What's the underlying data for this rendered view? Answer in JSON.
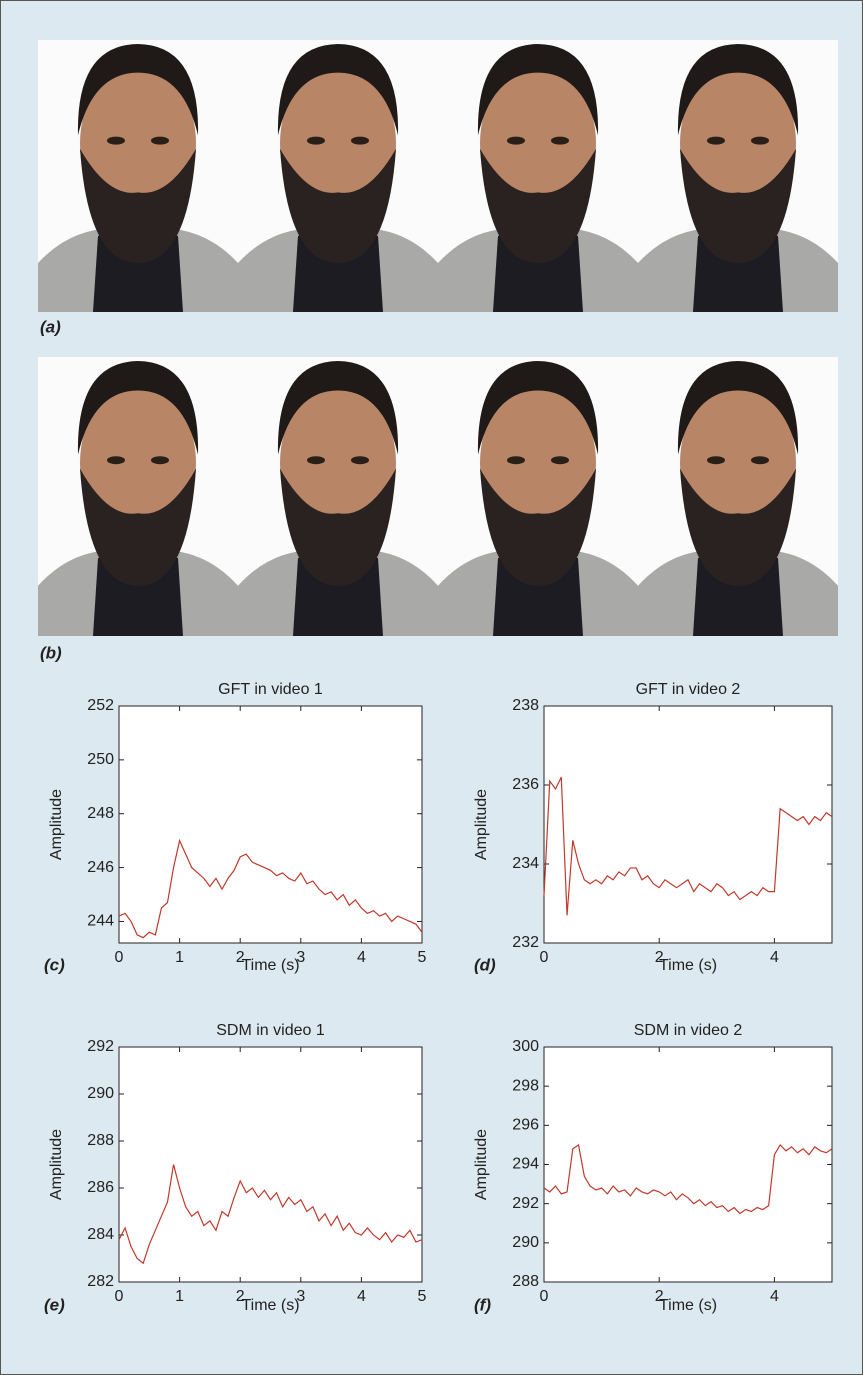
{
  "panel_labels": [
    "(a)",
    "(b)",
    "(c)",
    "(d)",
    "(e)",
    "(f)"
  ],
  "chart_data": [
    {
      "type": "line",
      "title": "GFT in video 1",
      "x_label": "Time (s)",
      "y_label": "Amplitude",
      "color": "#c0392b",
      "x": [
        0,
        0.1,
        0.2,
        0.3,
        0.4,
        0.5,
        0.6,
        0.7,
        0.8,
        0.9,
        1,
        1.1,
        1.2,
        1.3,
        1.4,
        1.5,
        1.6,
        1.7,
        1.8,
        1.9,
        2,
        2.1,
        2.2,
        2.3,
        2.4,
        2.5,
        2.6,
        2.7,
        2.8,
        2.9,
        3,
        3.1,
        3.2,
        3.3,
        3.4,
        3.5,
        3.6,
        3.7,
        3.8,
        3.9,
        4,
        4.1,
        4.2,
        4.3,
        4.4,
        4.5,
        4.6,
        4.7,
        4.8,
        4.9,
        5
      ],
      "values": [
        244.2,
        244.3,
        244.0,
        243.5,
        243.4,
        243.6,
        243.5,
        244.5,
        244.7,
        246.0,
        247.0,
        246.5,
        246.0,
        245.8,
        245.6,
        245.3,
        245.6,
        245.2,
        245.6,
        245.9,
        246.4,
        246.5,
        246.2,
        246.1,
        246.0,
        245.9,
        245.7,
        245.8,
        245.6,
        245.5,
        245.8,
        245.4,
        245.5,
        245.2,
        245.0,
        245.1,
        244.8,
        245.0,
        244.6,
        244.8,
        244.5,
        244.3,
        244.4,
        244.2,
        244.3,
        244.0,
        244.2,
        244.1,
        244.0,
        243.9,
        243.6
      ],
      "xlim": [
        0,
        5
      ],
      "ylim": [
        243.2,
        252
      ],
      "xticks": [
        0,
        1,
        2,
        3,
        4,
        5
      ],
      "yticks": [
        244,
        246,
        248,
        250,
        252
      ]
    },
    {
      "type": "line",
      "title": "GFT in video 2",
      "x_label": "Time (s)",
      "y_label": "Amplitude",
      "color": "#c0392b",
      "x": [
        0,
        0.1,
        0.2,
        0.3,
        0.4,
        0.5,
        0.6,
        0.7,
        0.8,
        0.9,
        1,
        1.1,
        1.2,
        1.3,
        1.4,
        1.5,
        1.6,
        1.7,
        1.8,
        1.9,
        2,
        2.1,
        2.2,
        2.3,
        2.4,
        2.5,
        2.6,
        2.7,
        2.8,
        2.9,
        3,
        3.1,
        3.2,
        3.3,
        3.4,
        3.5,
        3.6,
        3.7,
        3.8,
        3.9,
        4,
        4.1,
        4.2,
        4.3,
        4.4,
        4.5,
        4.6,
        4.7,
        4.8,
        4.9,
        5
      ],
      "values": [
        233.2,
        236.1,
        235.9,
        236.2,
        232.7,
        234.6,
        234.0,
        233.6,
        233.5,
        233.6,
        233.5,
        233.7,
        233.6,
        233.8,
        233.7,
        233.9,
        233.9,
        233.6,
        233.7,
        233.5,
        233.4,
        233.6,
        233.5,
        233.4,
        233.5,
        233.6,
        233.3,
        233.5,
        233.4,
        233.3,
        233.5,
        233.4,
        233.2,
        233.3,
        233.1,
        233.2,
        233.3,
        233.2,
        233.4,
        233.3,
        233.3,
        235.4,
        235.3,
        235.2,
        235.1,
        235.2,
        235.0,
        235.2,
        235.1,
        235.3,
        235.2
      ],
      "xlim": [
        0,
        5
      ],
      "ylim": [
        232,
        238
      ],
      "xticks": [
        0,
        2,
        4
      ],
      "yticks": [
        232,
        234,
        236,
        238
      ]
    },
    {
      "type": "line",
      "title": "SDM in video 1",
      "x_label": "Time (s)",
      "y_label": "Amplitude",
      "color": "#c0392b",
      "x": [
        0,
        0.1,
        0.2,
        0.3,
        0.4,
        0.5,
        0.6,
        0.7,
        0.8,
        0.9,
        1,
        1.1,
        1.2,
        1.3,
        1.4,
        1.5,
        1.6,
        1.7,
        1.8,
        1.9,
        2,
        2.1,
        2.2,
        2.3,
        2.4,
        2.5,
        2.6,
        2.7,
        2.8,
        2.9,
        3,
        3.1,
        3.2,
        3.3,
        3.4,
        3.5,
        3.6,
        3.7,
        3.8,
        3.9,
        4,
        4.1,
        4.2,
        4.3,
        4.4,
        4.5,
        4.6,
        4.7,
        4.8,
        4.9,
        5
      ],
      "values": [
        283.8,
        284.3,
        283.5,
        283.0,
        282.8,
        283.6,
        284.2,
        284.8,
        285.4,
        287.0,
        286.0,
        285.2,
        284.8,
        285.0,
        284.4,
        284.6,
        284.2,
        285.0,
        284.8,
        285.6,
        286.3,
        285.8,
        286.0,
        285.6,
        285.9,
        285.5,
        285.8,
        285.2,
        285.6,
        285.3,
        285.5,
        285.0,
        285.2,
        284.6,
        284.9,
        284.4,
        284.8,
        284.2,
        284.5,
        284.1,
        284.0,
        284.3,
        284.0,
        283.8,
        284.1,
        283.7,
        284.0,
        283.9,
        284.2,
        283.7,
        283.8
      ],
      "xlim": [
        0,
        5
      ],
      "ylim": [
        282,
        292
      ],
      "xticks": [
        0,
        1,
        2,
        3,
        4,
        5
      ],
      "yticks": [
        282,
        284,
        286,
        288,
        290,
        292
      ]
    },
    {
      "type": "line",
      "title": "SDM in video 2",
      "x_label": "Time (s)",
      "y_label": "Amplitude",
      "color": "#c0392b",
      "x": [
        0,
        0.1,
        0.2,
        0.3,
        0.4,
        0.5,
        0.6,
        0.7,
        0.8,
        0.9,
        1,
        1.1,
        1.2,
        1.3,
        1.4,
        1.5,
        1.6,
        1.7,
        1.8,
        1.9,
        2,
        2.1,
        2.2,
        2.3,
        2.4,
        2.5,
        2.6,
        2.7,
        2.8,
        2.9,
        3,
        3.1,
        3.2,
        3.3,
        3.4,
        3.5,
        3.6,
        3.7,
        3.8,
        3.9,
        4,
        4.1,
        4.2,
        4.3,
        4.4,
        4.5,
        4.6,
        4.7,
        4.8,
        4.9,
        5
      ],
      "values": [
        292.8,
        292.6,
        292.9,
        292.5,
        292.6,
        294.8,
        295.0,
        293.4,
        292.9,
        292.7,
        292.8,
        292.5,
        292.9,
        292.6,
        292.7,
        292.4,
        292.8,
        292.6,
        292.5,
        292.7,
        292.6,
        292.4,
        292.6,
        292.2,
        292.5,
        292.3,
        292.0,
        292.2,
        291.9,
        292.1,
        291.8,
        291.9,
        291.6,
        291.8,
        291.5,
        291.7,
        291.6,
        291.8,
        291.7,
        291.9,
        294.5,
        295.0,
        294.7,
        294.9,
        294.6,
        294.8,
        294.5,
        294.9,
        294.7,
        294.6,
        294.8
      ],
      "xlim": [
        0,
        5
      ],
      "ylim": [
        288,
        300
      ],
      "xticks": [
        0,
        2,
        4
      ],
      "yticks": [
        288,
        290,
        292,
        294,
        296,
        298,
        300
      ]
    }
  ]
}
